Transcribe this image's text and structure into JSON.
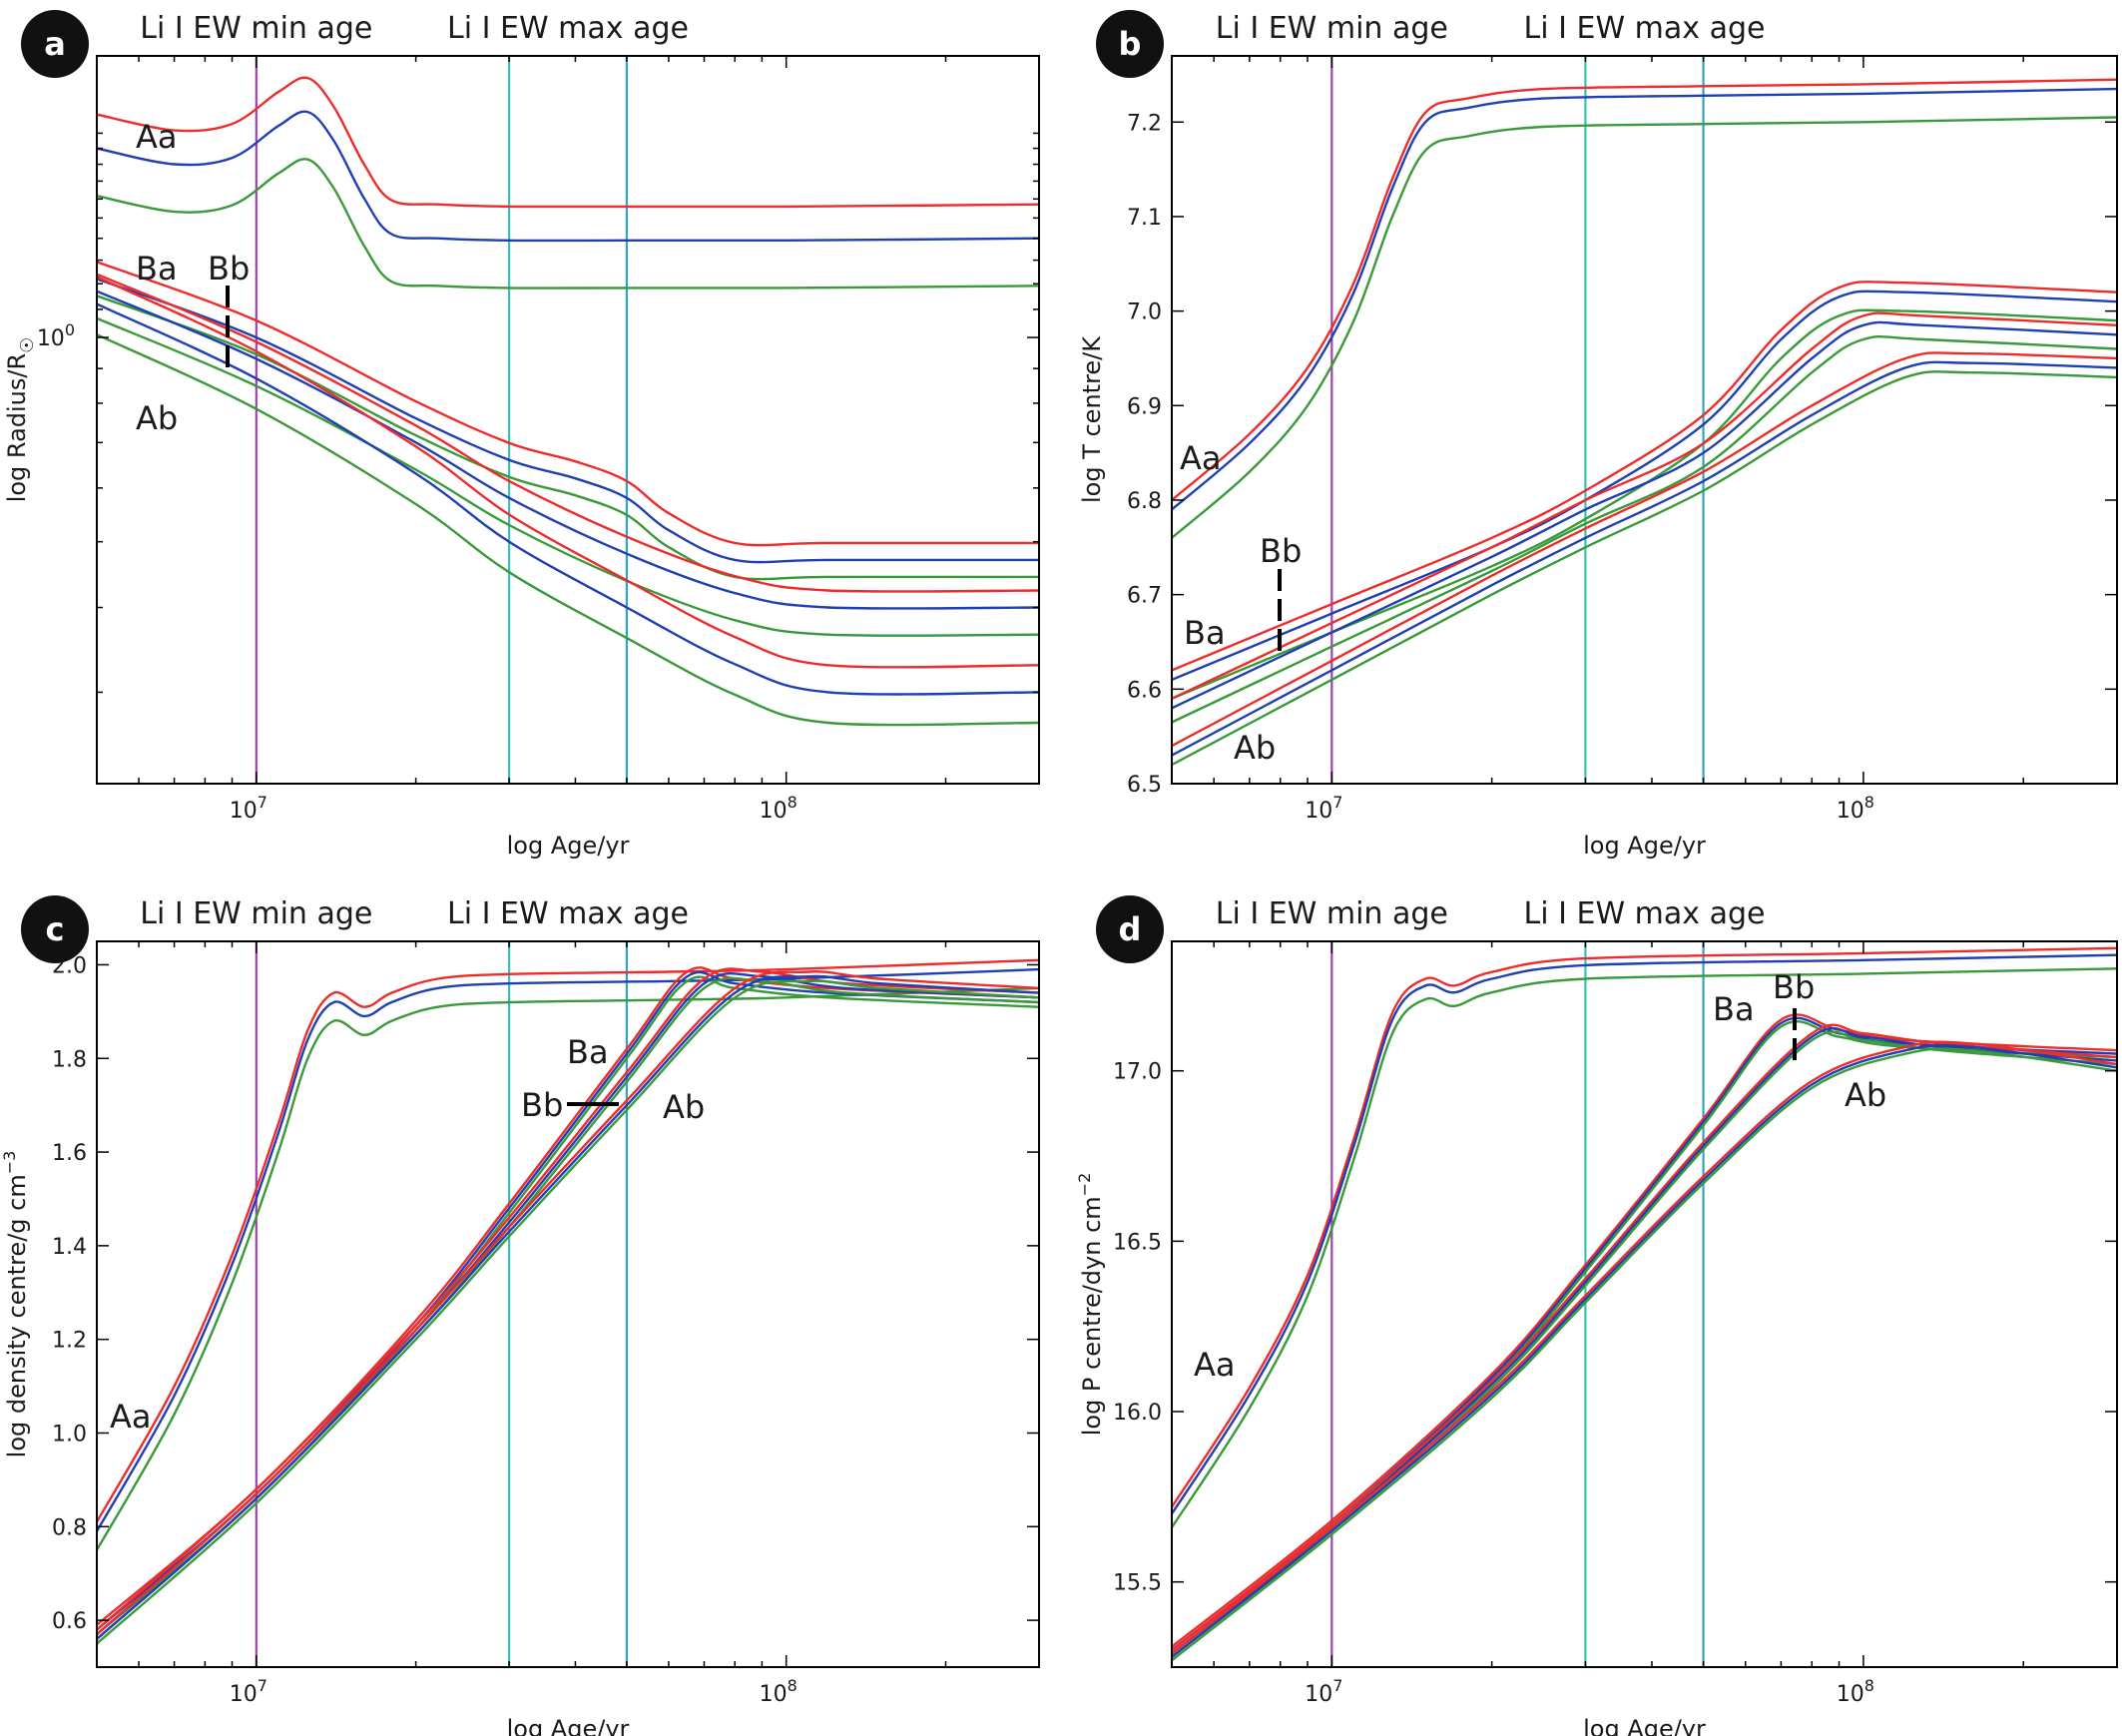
{
  "colors": {
    "red": "#ee2c2c",
    "blue": "#1f3fb2",
    "green": "#3a9a3a",
    "magenta": "#a63cb8",
    "teal1": "#34c3b8",
    "teal2": "#2fa3c9",
    "badge": "#111111"
  },
  "common": {
    "xlabel": "log Age/yr",
    "xlim": [
      5000000,
      300000000
    ],
    "xticks": [
      {
        "value": 10000000,
        "base": "10",
        "exp": "7"
      },
      {
        "value": 100000000,
        "base": "10",
        "exp": "8"
      }
    ],
    "vlines": [
      {
        "name": "min-age-line",
        "value": 10000000,
        "color": "magenta"
      },
      {
        "name": "max-age-line-1",
        "value": 30000000,
        "color": "teal1"
      },
      {
        "name": "max-age-line-2",
        "value": 50000000,
        "color": "teal2"
      }
    ],
    "min_label": "Li I EW min age",
    "max_label": "Li I EW max age"
  },
  "chart_data": [
    {
      "panel": "a",
      "type": "line",
      "title": "",
      "xlabel": "log Age/yr",
      "ylabel": "log Radius/R",
      "ylabel_sub": "☉",
      "ylim": [
        0.22,
        2.6
      ],
      "ylog": true,
      "yticks": [
        {
          "value": 1.0,
          "base": "10",
          "exp": "0"
        }
      ],
      "stars": [
        {
          "name": "Aa",
          "points": [
            [
              5000000.0,
              1.9
            ],
            [
              7000000.0,
              1.8
            ],
            [
              9000000.0,
              1.84
            ],
            [
              11000000.0,
              2.05
            ],
            [
              12500000.0,
              2.15
            ],
            [
              14000000.0,
              1.95
            ],
            [
              16000000.0,
              1.6
            ],
            [
              18000000.0,
              1.42
            ],
            [
              22000000.0,
              1.4
            ],
            [
              30000000.0,
              1.39
            ],
            [
              50000000.0,
              1.39
            ],
            [
              100000000.0,
              1.39
            ],
            [
              300000000.0,
              1.4
            ]
          ],
          "offsets": [
            0.05,
            0.0,
            -0.07
          ]
        },
        {
          "name": "Ba",
          "points": [
            [
              5000000.0,
              1.22
            ],
            [
              10000000.0,
              1.0
            ],
            [
              20000000.0,
              0.76
            ],
            [
              30000000.0,
              0.66
            ],
            [
              40000000.0,
              0.62
            ],
            [
              50000000.0,
              0.58
            ],
            [
              60000000.0,
              0.52
            ],
            [
              80000000.0,
              0.47
            ],
            [
              120000000.0,
              0.47
            ],
            [
              300000000.0,
              0.47
            ]
          ],
          "offsets": [
            0.025,
            0.0,
            -0.025
          ]
        },
        {
          "name": "Bb",
          "points": [
            [
              5000000.0,
              1.17
            ],
            [
              10000000.0,
              0.93
            ],
            [
              20000000.0,
              0.7
            ],
            [
              30000000.0,
              0.58
            ],
            [
              50000000.0,
              0.48
            ],
            [
              80000000.0,
              0.42
            ],
            [
              120000000.0,
              0.4
            ],
            [
              300000000.0,
              0.4
            ]
          ],
          "offsets": [
            0.025,
            0.0,
            -0.04
          ]
        },
        {
          "name": "Ab",
          "points": [
            [
              5000000.0,
              1.12
            ],
            [
              10000000.0,
              0.87
            ],
            [
              20000000.0,
              0.63
            ],
            [
              30000000.0,
              0.5
            ],
            [
              50000000.0,
              0.4
            ],
            [
              80000000.0,
              0.33
            ],
            [
              120000000.0,
              0.3
            ],
            [
              300000000.0,
              0.3
            ]
          ],
          "offsets": [
            0.04,
            0.0,
            -0.045
          ]
        }
      ],
      "annotations": [
        "Aa",
        "Ba",
        "Bb",
        "Ab"
      ]
    },
    {
      "panel": "b",
      "type": "line",
      "title": "",
      "xlabel": "log Age/yr",
      "ylabel": "log T centre/K",
      "ylabel_sub": "",
      "ylim": [
        6.5,
        7.27
      ],
      "ylog": false,
      "yticks": [
        {
          "value": 6.5,
          "label": "6.5"
        },
        {
          "value": 6.6,
          "label": "6.6"
        },
        {
          "value": 6.7,
          "label": "6.7"
        },
        {
          "value": 6.8,
          "label": "6.8"
        },
        {
          "value": 6.9,
          "label": "6.9"
        },
        {
          "value": 7.0,
          "label": "7.0"
        },
        {
          "value": 7.1,
          "label": "7.1"
        },
        {
          "value": 7.2,
          "label": "7.2"
        }
      ],
      "stars": [
        {
          "name": "Aa",
          "points": [
            [
              5000000.0,
              6.79
            ],
            [
              7000000.0,
              6.86
            ],
            [
              9000000.0,
              6.93
            ],
            [
              11000000.0,
              7.02
            ],
            [
              13000000.0,
              7.13
            ],
            [
              15000000.0,
              7.2
            ],
            [
              18000000.0,
              7.215
            ],
            [
              25000000.0,
              7.225
            ],
            [
              50000000.0,
              7.228
            ],
            [
              100000000.0,
              7.23
            ],
            [
              300000000.0,
              7.235
            ]
          ],
          "offsets": [
            0.01,
            0.0,
            -0.03
          ]
        },
        {
          "name": "Ba",
          "points": [
            [
              5000000.0,
              6.61
            ],
            [
              10000000.0,
              6.68
            ],
            [
              20000000.0,
              6.75
            ],
            [
              30000000.0,
              6.8
            ],
            [
              50000000.0,
              6.88
            ],
            [
              70000000.0,
              6.97
            ],
            [
              90000000.0,
              7.015
            ],
            [
              120000000.0,
              7.02
            ],
            [
              300000000.0,
              7.01
            ]
          ],
          "offsets": [
            0.01,
            0.0,
            -0.02
          ]
        },
        {
          "name": "Bb",
          "points": [
            [
              5000000.0,
              6.58
            ],
            [
              10000000.0,
              6.66
            ],
            [
              20000000.0,
              6.74
            ],
            [
              30000000.0,
              6.79
            ],
            [
              50000000.0,
              6.85
            ],
            [
              80000000.0,
              6.95
            ],
            [
              100000000.0,
              6.985
            ],
            [
              130000000.0,
              6.985
            ],
            [
              300000000.0,
              6.975
            ]
          ],
          "offsets": [
            0.01,
            0.0,
            -0.015
          ]
        },
        {
          "name": "Ab",
          "points": [
            [
              5000000.0,
              6.53
            ],
            [
              10000000.0,
              6.62
            ],
            [
              20000000.0,
              6.71
            ],
            [
              30000000.0,
              6.76
            ],
            [
              50000000.0,
              6.82
            ],
            [
              80000000.0,
              6.89
            ],
            [
              120000000.0,
              6.94
            ],
            [
              160000000.0,
              6.945
            ],
            [
              300000000.0,
              6.94
            ]
          ],
          "offsets": [
            0.01,
            0.0,
            -0.01
          ]
        }
      ],
      "annotations": [
        "Aa",
        "Ba",
        "Bb",
        "Ab"
      ]
    },
    {
      "panel": "c",
      "type": "line",
      "title": "",
      "xlabel": "log Age/yr",
      "ylabel": "log density centre/g cm",
      "ylabel_sup": "−3",
      "ylim": [
        0.5,
        2.05
      ],
      "ylog": false,
      "yticks": [
        {
          "value": 0.6,
          "label": "0.6"
        },
        {
          "value": 0.8,
          "label": "0.8"
        },
        {
          "value": 1.0,
          "label": "1.0"
        },
        {
          "value": 1.2,
          "label": "1.2"
        },
        {
          "value": 1.4,
          "label": "1.4"
        },
        {
          "value": 1.6,
          "label": "1.6"
        },
        {
          "value": 1.8,
          "label": "1.8"
        },
        {
          "value": 2.0,
          "label": "2.0"
        }
      ],
      "stars": [
        {
          "name": "Aa",
          "points": [
            [
              5000000.0,
              0.79
            ],
            [
              7000000.0,
              1.08
            ],
            [
              9000000.0,
              1.36
            ],
            [
              11000000.0,
              1.64
            ],
            [
              12500000.0,
              1.84
            ],
            [
              14000000.0,
              1.92
            ],
            [
              16000000.0,
              1.89
            ],
            [
              18000000.0,
              1.92
            ],
            [
              22000000.0,
              1.95
            ],
            [
              30000000.0,
              1.96
            ],
            [
              60000000.0,
              1.965
            ],
            [
              100000000.0,
              1.97
            ],
            [
              300000000.0,
              1.99
            ]
          ],
          "offsets": [
            0.02,
            0.0,
            -0.04
          ]
        },
        {
          "name": "Ba",
          "points": [
            [
              5000000.0,
              0.58
            ],
            [
              10000000.0,
              0.87
            ],
            [
              20000000.0,
              1.23
            ],
            [
              30000000.0,
              1.48
            ],
            [
              50000000.0,
              1.81
            ],
            [
              65000000.0,
              1.975
            ],
            [
              80000000.0,
              1.96
            ],
            [
              120000000.0,
              1.94
            ],
            [
              300000000.0,
              1.92
            ]
          ],
          "offsets": [
            0.01,
            0.0,
            -0.01
          ]
        },
        {
          "name": "Bb",
          "points": [
            [
              5000000.0,
              0.57
            ],
            [
              10000000.0,
              0.87
            ],
            [
              20000000.0,
              1.22
            ],
            [
              30000000.0,
              1.45
            ],
            [
              50000000.0,
              1.76
            ],
            [
              70000000.0,
              1.96
            ],
            [
              90000000.0,
              1.975
            ],
            [
              130000000.0,
              1.95
            ],
            [
              300000000.0,
              1.93
            ]
          ],
          "offsets": [
            0.01,
            0.0,
            -0.01
          ]
        },
        {
          "name": "Ab",
          "points": [
            [
              5000000.0,
              0.56
            ],
            [
              10000000.0,
              0.86
            ],
            [
              20000000.0,
              1.21
            ],
            [
              30000000.0,
              1.43
            ],
            [
              50000000.0,
              1.7
            ],
            [
              80000000.0,
              1.94
            ],
            [
              110000000.0,
              1.975
            ],
            [
              150000000.0,
              1.96
            ],
            [
              300000000.0,
              1.94
            ]
          ],
          "offsets": [
            0.01,
            0.0,
            -0.01
          ]
        }
      ],
      "annotations": [
        "Aa",
        "Ba",
        "Bb",
        "Ab"
      ]
    },
    {
      "panel": "d",
      "type": "line",
      "title": "",
      "xlabel": "log Age/yr",
      "ylabel": "log P centre/dyn cm",
      "ylabel_sup": "−2",
      "ylim": [
        15.25,
        17.38
      ],
      "ylog": false,
      "yticks": [
        {
          "value": 15.5,
          "label": "15.5"
        },
        {
          "value": 16.0,
          "label": "16.0"
        },
        {
          "value": 16.5,
          "label": "16.5"
        },
        {
          "value": 17.0,
          "label": "17.0"
        }
      ],
      "stars": [
        {
          "name": "Aa",
          "points": [
            [
              5000000.0,
              15.7
            ],
            [
              7000000.0,
              16.05
            ],
            [
              9000000.0,
              16.38
            ],
            [
              11000000.0,
              16.78
            ],
            [
              13000000.0,
              17.15
            ],
            [
              15000000.0,
              17.25
            ],
            [
              17000000.0,
              17.23
            ],
            [
              20000000.0,
              17.27
            ],
            [
              30000000.0,
              17.31
            ],
            [
              100000000.0,
              17.325
            ],
            [
              300000000.0,
              17.34
            ]
          ],
          "offsets": [
            0.02,
            0.0,
            -0.04
          ]
        },
        {
          "name": "Ba",
          "points": [
            [
              5000000.0,
              15.3
            ],
            [
              10000000.0,
              15.67
            ],
            [
              20000000.0,
              16.1
            ],
            [
              30000000.0,
              16.42
            ],
            [
              50000000.0,
              16.85
            ],
            [
              70000000.0,
              17.14
            ],
            [
              90000000.0,
              17.11
            ],
            [
              120000000.0,
              17.08
            ],
            [
              300000000.0,
              17.05
            ]
          ],
          "offsets": [
            0.01,
            0.0,
            -0.01
          ]
        },
        {
          "name": "Bb",
          "points": [
            [
              5000000.0,
              15.29
            ],
            [
              10000000.0,
              15.66
            ],
            [
              20000000.0,
              16.08
            ],
            [
              30000000.0,
              16.38
            ],
            [
              50000000.0,
              16.78
            ],
            [
              80000000.0,
              17.1
            ],
            [
              100000000.0,
              17.1
            ],
            [
              140000000.0,
              17.07
            ],
            [
              300000000.0,
              17.03
            ]
          ],
          "offsets": [
            0.01,
            0.0,
            -0.01
          ]
        },
        {
          "name": "Ab",
          "points": [
            [
              5000000.0,
              15.28
            ],
            [
              10000000.0,
              15.65
            ],
            [
              20000000.0,
              16.05
            ],
            [
              30000000.0,
              16.33
            ],
            [
              50000000.0,
              16.68
            ],
            [
              80000000.0,
              16.96
            ],
            [
              120000000.0,
              17.06
            ],
            [
              160000000.0,
              17.07
            ],
            [
              300000000.0,
              17.01
            ]
          ],
          "offsets": [
            0.01,
            0.0,
            -0.01
          ]
        }
      ],
      "annotations": [
        "Aa",
        "Ba",
        "Bb",
        "Ab"
      ]
    }
  ]
}
